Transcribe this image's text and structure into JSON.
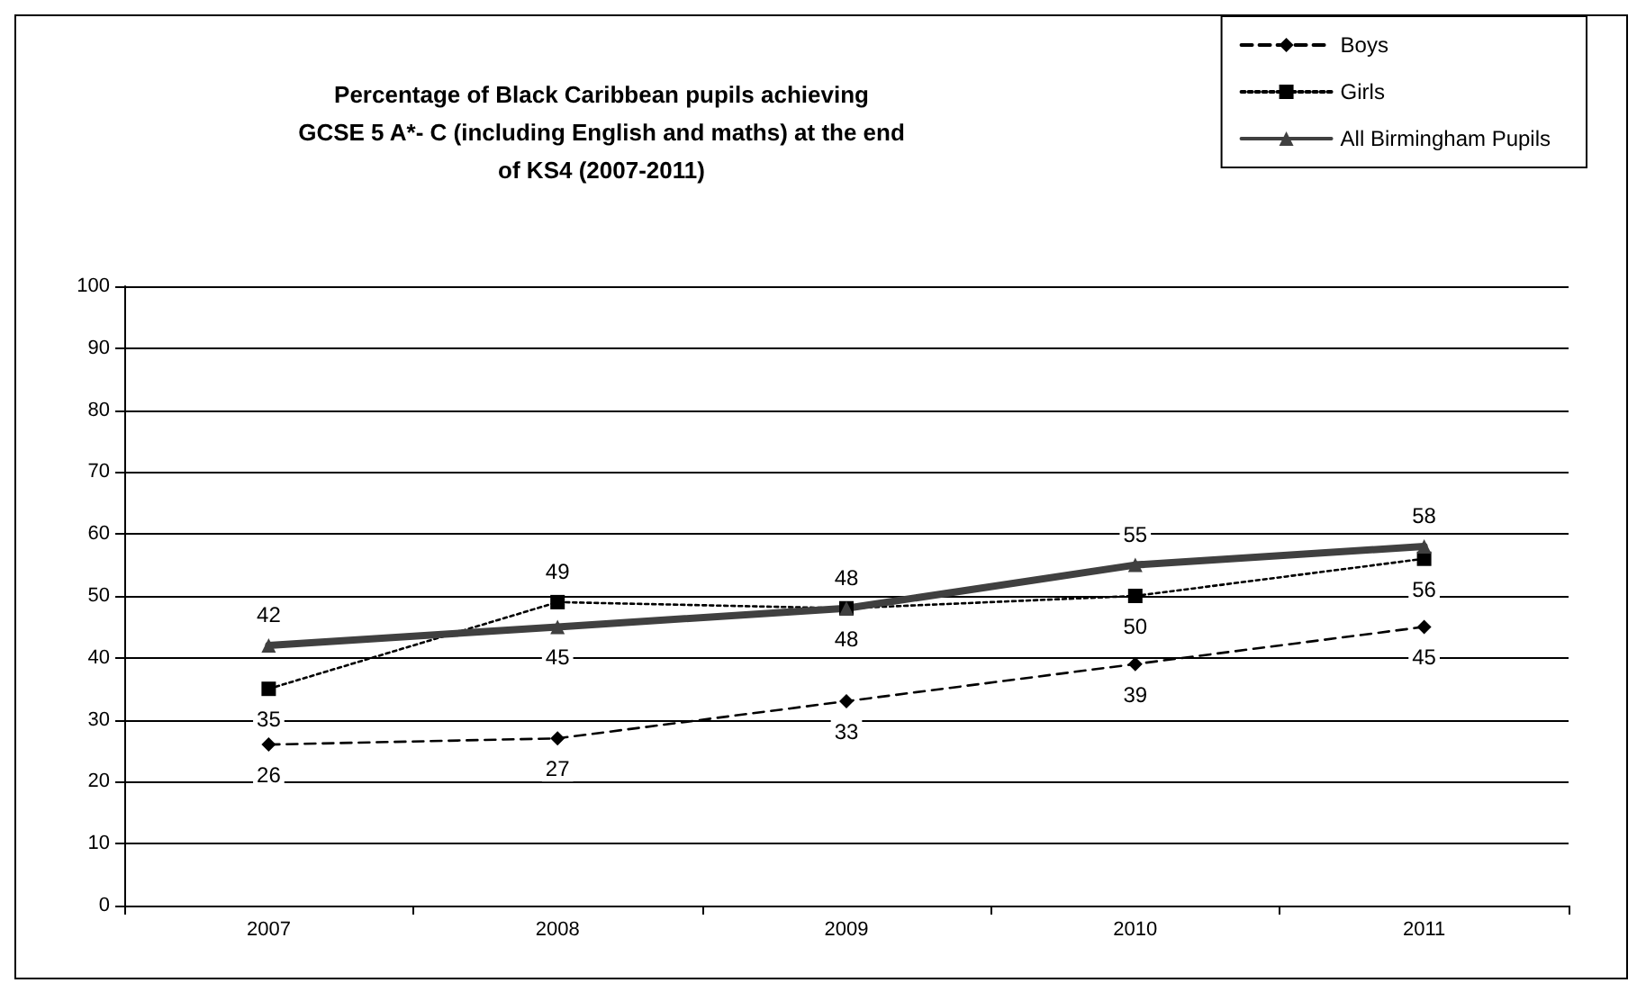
{
  "chart_data": {
    "type": "line",
    "title": "Percentage of Black Caribbean pupils achieving\nGCSE 5 A*- C (including English and maths) at the end\nof KS4 (2007-2011)",
    "categories": [
      "2007",
      "2008",
      "2009",
      "2010",
      "2011"
    ],
    "series": [
      {
        "name": "Boys",
        "color": "#000000",
        "values": [
          26,
          27,
          33,
          39,
          45
        ],
        "line_style": "dashed",
        "marker": "diamond"
      },
      {
        "name": "Girls",
        "color": "#000000",
        "values": [
          35,
          49,
          48,
          50,
          56
        ],
        "line_style": "dotted",
        "marker": "square"
      },
      {
        "name": "All Birmingham Pupils",
        "color": "#404040",
        "values": [
          42,
          45,
          48,
          55,
          58
        ],
        "line_style": "solid",
        "marker": "triangle"
      }
    ],
    "ylim": [
      0,
      100
    ],
    "yticks": [
      0,
      10,
      20,
      30,
      40,
      50,
      60,
      70,
      80,
      90,
      100
    ],
    "grid": "y",
    "legend": "top right",
    "data_labels": true
  }
}
